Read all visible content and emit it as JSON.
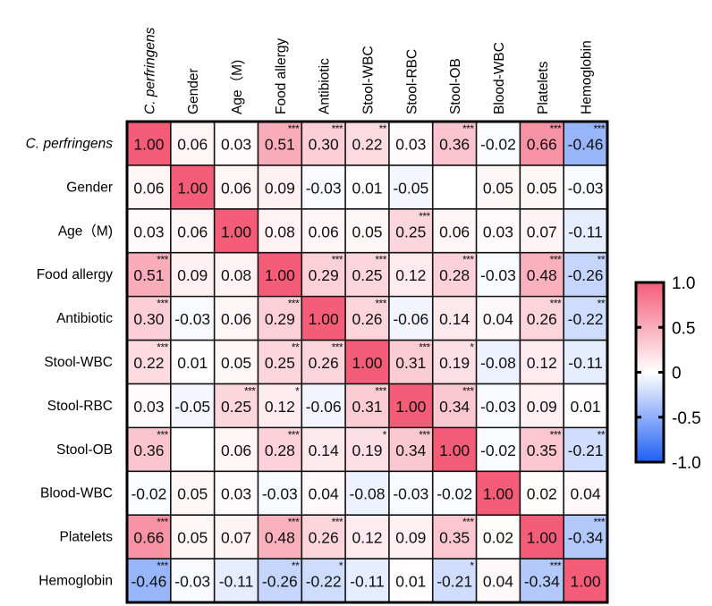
{
  "chart_data": {
    "type": "heatmap",
    "title": "",
    "variables": [
      "C. perfringens",
      "Gender",
      "Age（M)",
      "Food allergy",
      "Antibiotic",
      "Stool-WBC",
      "Stool-RBC",
      "Stool-OB",
      "Blood-WBC",
      "Platelets",
      "Hemoglobin"
    ],
    "italic_variables": [
      "C. perfringens"
    ],
    "matrix": [
      [
        1.0,
        0.06,
        0.03,
        0.51,
        0.3,
        0.22,
        0.03,
        0.36,
        -0.02,
        0.66,
        -0.46
      ],
      [
        0.06,
        1.0,
        0.06,
        0.09,
        -0.03,
        0.01,
        -0.05,
        null,
        0.05,
        0.05,
        -0.03
      ],
      [
        0.03,
        0.06,
        1.0,
        0.08,
        0.06,
        0.05,
        0.25,
        0.06,
        0.03,
        0.07,
        -0.11
      ],
      [
        0.51,
        0.09,
        0.08,
        1.0,
        0.29,
        0.25,
        0.12,
        0.28,
        -0.03,
        0.48,
        -0.26
      ],
      [
        0.3,
        -0.03,
        0.06,
        0.29,
        1.0,
        0.26,
        -0.06,
        0.14,
        0.04,
        0.26,
        -0.22
      ],
      [
        0.22,
        0.01,
        0.05,
        0.25,
        0.26,
        1.0,
        0.31,
        0.19,
        -0.08,
        0.12,
        -0.11
      ],
      [
        0.03,
        -0.05,
        0.25,
        0.12,
        -0.06,
        0.31,
        1.0,
        0.34,
        -0.03,
        0.09,
        0.01
      ],
      [
        0.36,
        null,
        0.06,
        0.28,
        0.14,
        0.19,
        0.34,
        1.0,
        -0.02,
        0.35,
        -0.21
      ],
      [
        -0.02,
        0.05,
        0.03,
        -0.03,
        0.04,
        -0.08,
        -0.03,
        -0.02,
        1.0,
        0.02,
        0.04
      ],
      [
        0.66,
        0.05,
        0.07,
        0.48,
        0.26,
        0.12,
        0.09,
        0.35,
        0.02,
        1.0,
        -0.34
      ],
      [
        -0.46,
        -0.03,
        -0.11,
        -0.26,
        -0.22,
        -0.11,
        0.01,
        -0.21,
        0.04,
        -0.34,
        1.0
      ]
    ],
    "significance": [
      [
        "",
        "",
        "",
        "***",
        "***",
        "**",
        "",
        "***",
        "",
        "***",
        "***"
      ],
      [
        "",
        "",
        "",
        "",
        "",
        "",
        "",
        "",
        "",
        "",
        ""
      ],
      [
        "",
        "",
        "",
        "",
        "",
        "",
        "***",
        "",
        "",
        "",
        ""
      ],
      [
        "***",
        "",
        "",
        "",
        "***",
        "***",
        "",
        "***",
        "",
        "***",
        "**"
      ],
      [
        "***",
        "",
        "",
        "***",
        "",
        "***",
        "",
        "",
        "",
        "***",
        "**"
      ],
      [
        "***",
        "",
        "",
        "**",
        "***",
        "",
        "***",
        "*",
        "",
        "",
        ""
      ],
      [
        "",
        "",
        "***",
        "*",
        "",
        "***",
        "",
        "***",
        "",
        "",
        ""
      ],
      [
        "***",
        "",
        "",
        "***",
        "",
        "*",
        "***",
        "",
        "",
        "***",
        "**"
      ],
      [
        "",
        "",
        "",
        "",
        "",
        "",
        "",
        "",
        "",
        "",
        ""
      ],
      [
        "***",
        "",
        "",
        "***",
        "***",
        "",
        "",
        "***",
        "",
        "",
        "***"
      ],
      [
        "***",
        "",
        "",
        "**",
        "*",
        "",
        "",
        "*",
        "",
        "***",
        ""
      ]
    ],
    "colorbar": {
      "range": [
        -1.0,
        1.0
      ],
      "ticks": [
        1.0,
        0.5,
        0,
        -0.5,
        -1.0
      ],
      "tick_labels": [
        "1.0",
        "0.5",
        "0",
        "-0.5",
        "-1.0"
      ],
      "colors": {
        "positive": "#F45C78",
        "zero": "#FFFFFF",
        "negative": "#1E5FF5"
      },
      "placement": "right"
    },
    "xlabel": "",
    "ylabel": "",
    "grid": true
  }
}
